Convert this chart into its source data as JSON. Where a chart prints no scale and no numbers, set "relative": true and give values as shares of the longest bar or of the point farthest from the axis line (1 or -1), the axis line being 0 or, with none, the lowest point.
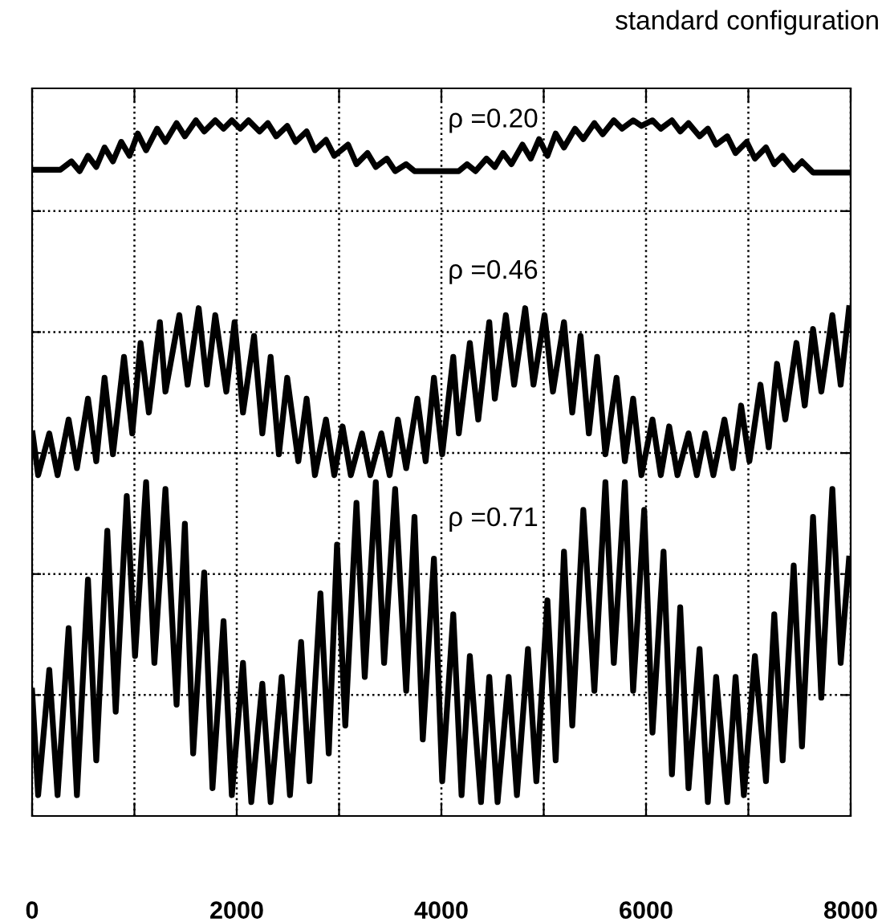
{
  "chart_data": {
    "type": "line",
    "title": "standard configuration",
    "relative": true,
    "grid": true,
    "legend": false,
    "tick_labels": "x",
    "xlim": [
      0,
      8000
    ],
    "xticks": [
      0,
      {
        "value": 1000,
        "label": null
      },
      2000,
      {
        "value": 3000,
        "label": null
      },
      4000,
      {
        "value": 5000,
        "label": null
      },
      6000,
      {
        "value": 7000,
        "label": null
      },
      8000
    ],
    "annotations": [
      "ρ =0.20",
      "ρ =0.46",
      "ρ =0.71"
    ],
    "series": [
      {
        "color": "#000000",
        "x": [
          5,
          276,
          384,
          465,
          546,
          627,
          708,
          790,
          871,
          952,
          1033,
          1114,
          1222,
          1303,
          1412,
          1493,
          1601,
          1682,
          1790,
          1871,
          1952,
          2034,
          2115,
          2223,
          2304,
          2385,
          2493,
          2575,
          2683,
          2764,
          2872,
          2953,
          3088,
          3170,
          3278,
          3359,
          3467,
          3548,
          3656,
          3737,
          4170,
          4251,
          4333,
          4441,
          4522,
          4603,
          4684,
          4792,
          4873,
          4955,
          5036,
          5117,
          5198,
          5306,
          5387,
          5495,
          5576,
          5685,
          5766,
          5874,
          5955,
          6063,
          6144,
          6253,
          6334,
          6415,
          6523,
          6604,
          6685,
          6794,
          6875,
          6983,
          7064,
          7172,
          7253,
          7335,
          7443,
          7524,
          7632,
          7984
        ],
        "values": [
          0.929,
          0.929,
          0.941,
          0.927,
          0.949,
          0.933,
          0.961,
          0.941,
          0.969,
          0.949,
          0.981,
          0.957,
          0.988,
          0.969,
          0.996,
          0.977,
          1.0,
          0.984,
          1.0,
          0.988,
          1.0,
          0.988,
          1.0,
          0.984,
          0.996,
          0.977,
          0.992,
          0.969,
          0.984,
          0.957,
          0.972,
          0.949,
          0.965,
          0.937,
          0.953,
          0.933,
          0.945,
          0.927,
          0.937,
          0.927,
          0.927,
          0.937,
          0.927,
          0.945,
          0.933,
          0.953,
          0.937,
          0.965,
          0.945,
          0.973,
          0.949,
          0.981,
          0.961,
          0.988,
          0.973,
          0.996,
          0.98,
          1.0,
          0.988,
          1.0,
          0.992,
          1.0,
          0.988,
          1.0,
          0.984,
          0.996,
          0.977,
          0.988,
          0.965,
          0.977,
          0.953,
          0.969,
          0.945,
          0.961,
          0.937,
          0.949,
          0.929,
          0.941,
          0.925,
          0.925
        ]
      },
      {
        "color": "#000000",
        "x": [
          5,
          59,
          168,
          249,
          357,
          438,
          546,
          627,
          708,
          790,
          898,
          979,
          1060,
          1141,
          1249,
          1303,
          1439,
          1520,
          1628,
          1709,
          1790,
          1898,
          1979,
          2061,
          2169,
          2250,
          2331,
          2412,
          2493,
          2602,
          2683,
          2764,
          2872,
          2953,
          3034,
          3115,
          3224,
          3305,
          3413,
          3494,
          3575,
          3656,
          3765,
          3846,
          3927,
          4008,
          4116,
          4170,
          4278,
          4360,
          4468,
          4522,
          4630,
          4711,
          4819,
          4900,
          5008,
          5090,
          5198,
          5279,
          5360,
          5441,
          5522,
          5603,
          5712,
          5793,
          5874,
          5955,
          6063,
          6144,
          6226,
          6307,
          6415,
          6496,
          6577,
          6658,
          6766,
          6848,
          6929,
          7010,
          7118,
          7199,
          7280,
          7361,
          7470,
          7551,
          7632,
          7713,
          7821,
          7902,
          7984
        ],
        "values": [
          0.55,
          0.49,
          0.55,
          0.49,
          0.57,
          0.5,
          0.6,
          0.51,
          0.63,
          0.52,
          0.66,
          0.55,
          0.68,
          0.58,
          0.71,
          0.61,
          0.72,
          0.62,
          0.73,
          0.62,
          0.72,
          0.61,
          0.71,
          0.58,
          0.69,
          0.55,
          0.66,
          0.52,
          0.63,
          0.51,
          0.6,
          0.49,
          0.57,
          0.49,
          0.56,
          0.49,
          0.55,
          0.49,
          0.55,
          0.49,
          0.57,
          0.5,
          0.6,
          0.51,
          0.63,
          0.52,
          0.66,
          0.55,
          0.68,
          0.57,
          0.71,
          0.6,
          0.72,
          0.62,
          0.73,
          0.62,
          0.72,
          0.61,
          0.71,
          0.58,
          0.69,
          0.55,
          0.66,
          0.52,
          0.63,
          0.51,
          0.6,
          0.49,
          0.57,
          0.49,
          0.56,
          0.49,
          0.55,
          0.49,
          0.55,
          0.49,
          0.57,
          0.5,
          0.59,
          0.51,
          0.62,
          0.53,
          0.65,
          0.57,
          0.68,
          0.59,
          0.7,
          0.61,
          0.72,
          0.62,
          0.73
        ]
      },
      {
        "color": "#000000",
        "x": [
          0,
          59,
          168,
          249,
          357,
          438,
          546,
          627,
          735,
          817,
          925,
          1006,
          1114,
          1195,
          1303,
          1412,
          1493,
          1574,
          1682,
          1763,
          1871,
          1952,
          2061,
          2142,
          2250,
          2331,
          2439,
          2520,
          2629,
          2710,
          2818,
          2899,
          2980,
          3061,
          3170,
          3251,
          3359,
          3440,
          3548,
          3656,
          3737,
          3818,
          3927,
          4008,
          4116,
          4197,
          4278,
          4387,
          4468,
          4549,
          4657,
          4738,
          4846,
          4928,
          5036,
          5117,
          5198,
          5279,
          5387,
          5495,
          5603,
          5685,
          5793,
          5874,
          5982,
          6063,
          6171,
          6253,
          6334,
          6415,
          6523,
          6604,
          6685,
          6794,
          6875,
          6956,
          7064,
          7172,
          7253,
          7335,
          7443,
          7524,
          7632,
          7713,
          7821,
          7902,
          7984
        ],
        "values": [
          0.18,
          0.03,
          0.21,
          0.03,
          0.27,
          0.03,
          0.34,
          0.08,
          0.41,
          0.15,
          0.46,
          0.23,
          0.48,
          0.22,
          0.47,
          0.16,
          0.42,
          0.09,
          0.35,
          0.04,
          0.28,
          0.03,
          0.22,
          0.02,
          0.19,
          0.02,
          0.2,
          0.03,
          0.25,
          0.05,
          0.32,
          0.09,
          0.39,
          0.13,
          0.45,
          0.2,
          0.48,
          0.22,
          0.47,
          0.18,
          0.43,
          0.11,
          0.37,
          0.05,
          0.29,
          0.03,
          0.23,
          0.02,
          0.2,
          0.02,
          0.2,
          0.03,
          0.24,
          0.05,
          0.31,
          0.08,
          0.38,
          0.13,
          0.44,
          0.18,
          0.48,
          0.22,
          0.48,
          0.18,
          0.44,
          0.12,
          0.38,
          0.06,
          0.3,
          0.04,
          0.24,
          0.02,
          0.2,
          0.02,
          0.2,
          0.03,
          0.23,
          0.05,
          0.29,
          0.08,
          0.36,
          0.1,
          0.43,
          0.17,
          0.47,
          0.22,
          0.37
        ]
      }
    ]
  }
}
